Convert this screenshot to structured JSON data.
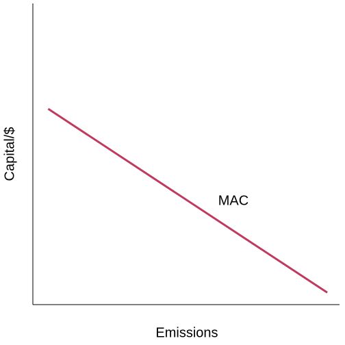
{
  "chart_data": {
    "type": "line",
    "x_label": "Emissions",
    "y_label": "Capital/$",
    "x": [
      5,
      96
    ],
    "values": [
      65,
      4
    ],
    "color": "#c03a5f",
    "annotation": "MAC",
    "xlim": [
      0,
      100
    ],
    "ylim": [
      0,
      100
    ]
  }
}
